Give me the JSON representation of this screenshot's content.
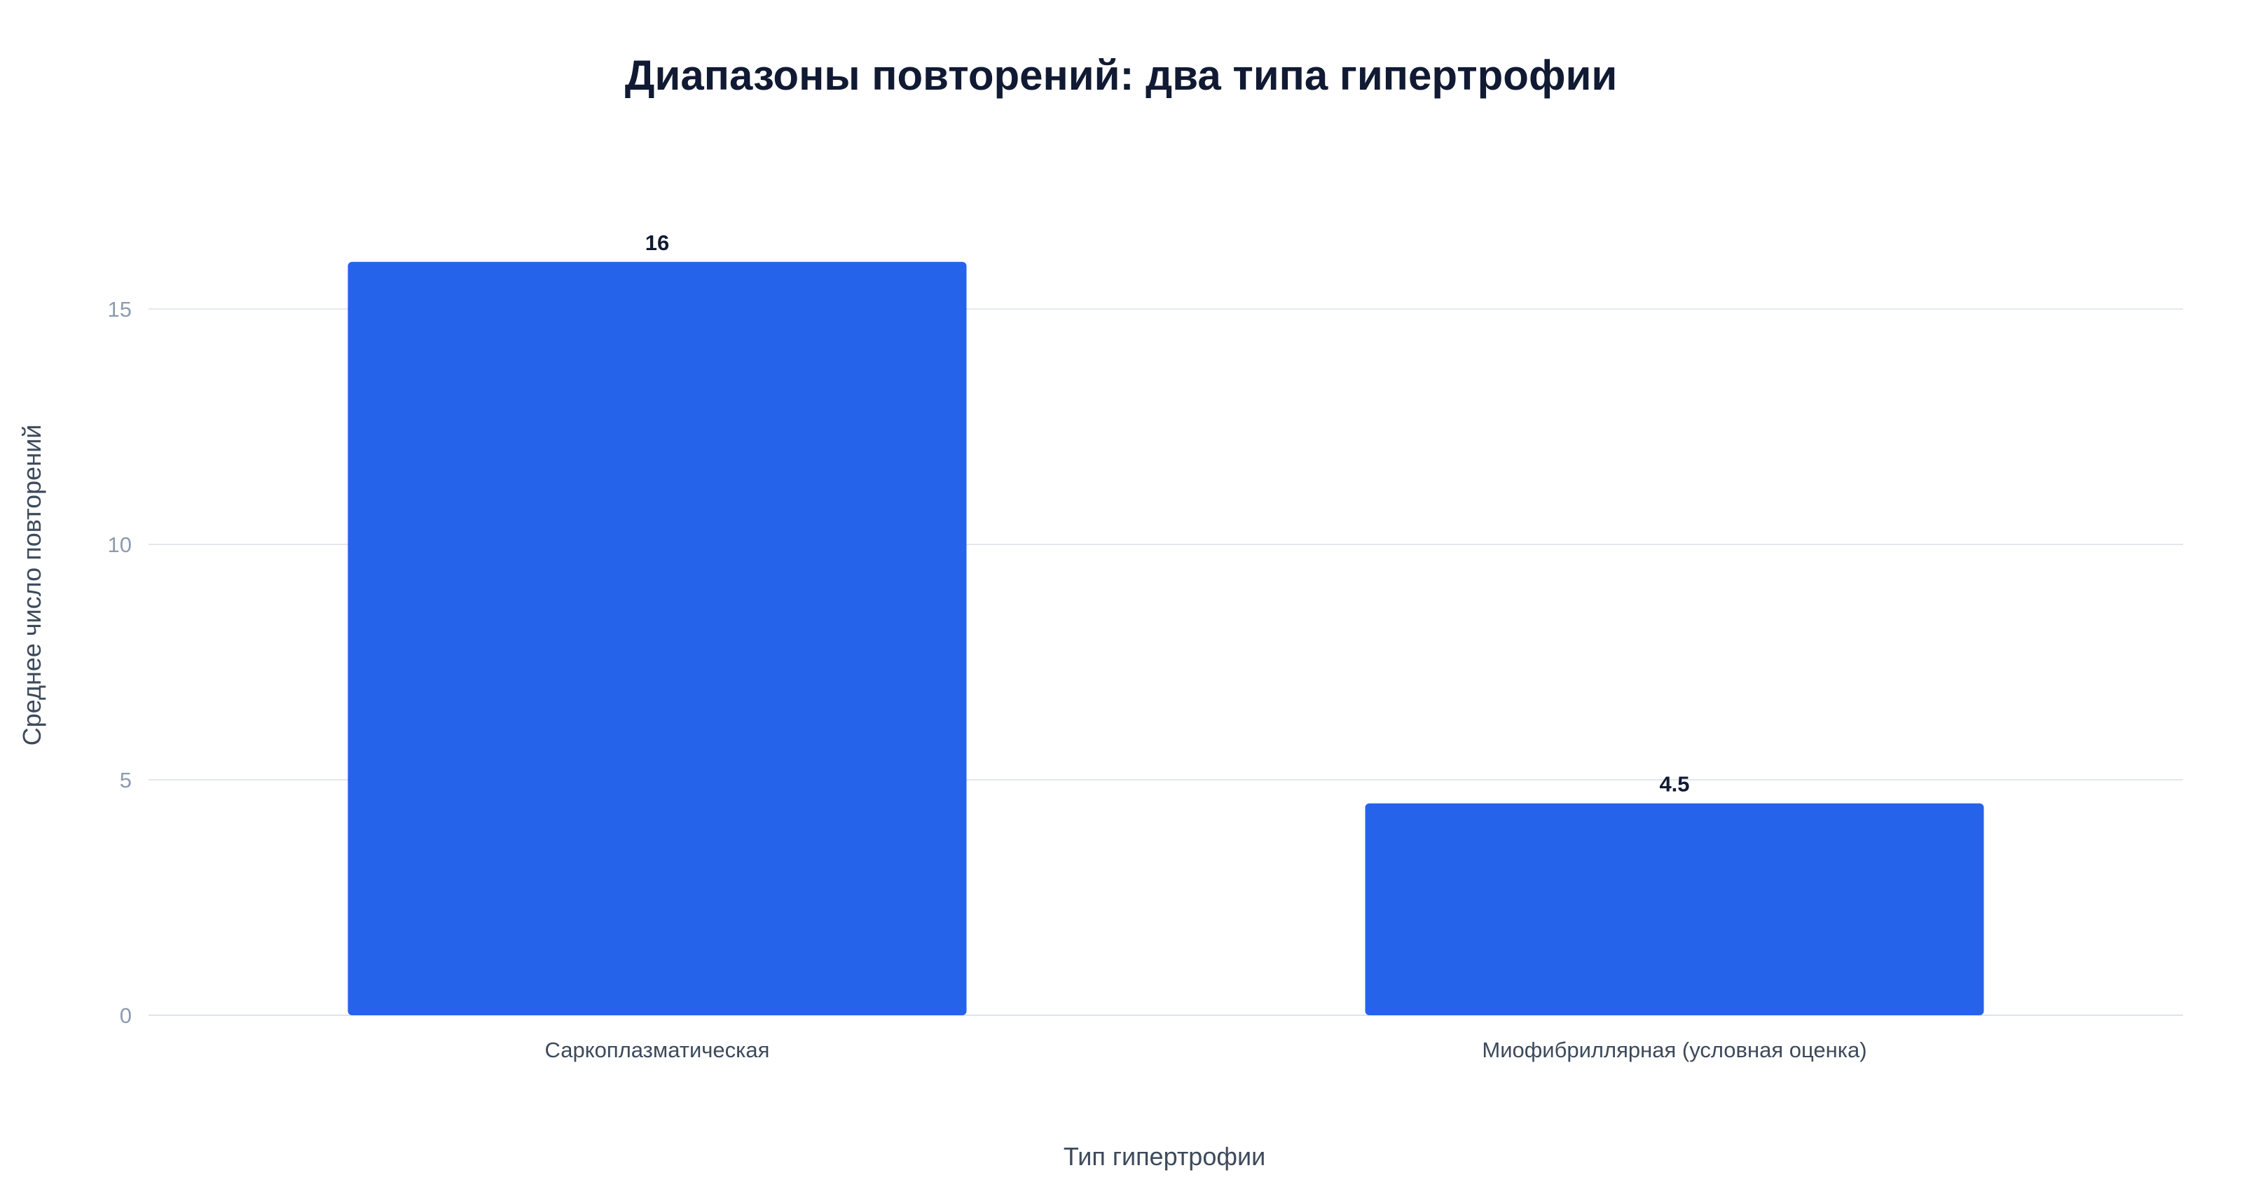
{
  "chart_data": {
    "type": "bar",
    "title": "Диапазоны повторений: два типа гипертрофии",
    "xlabel": "Тип гипертрофии",
    "ylabel": "Среднее число повторений",
    "categories": [
      "Саркоплазматическая",
      "Миофибриллярная (условная оценка)"
    ],
    "values": [
      16,
      4.5
    ],
    "data_labels": [
      "16",
      "4.5"
    ],
    "ylim": [
      0,
      17.5
    ],
    "yticks": [
      0,
      5,
      10,
      15
    ],
    "grid": true,
    "legend": "none",
    "colors": {
      "bar": "#2563eb",
      "grid": "#e3e7ee"
    }
  }
}
